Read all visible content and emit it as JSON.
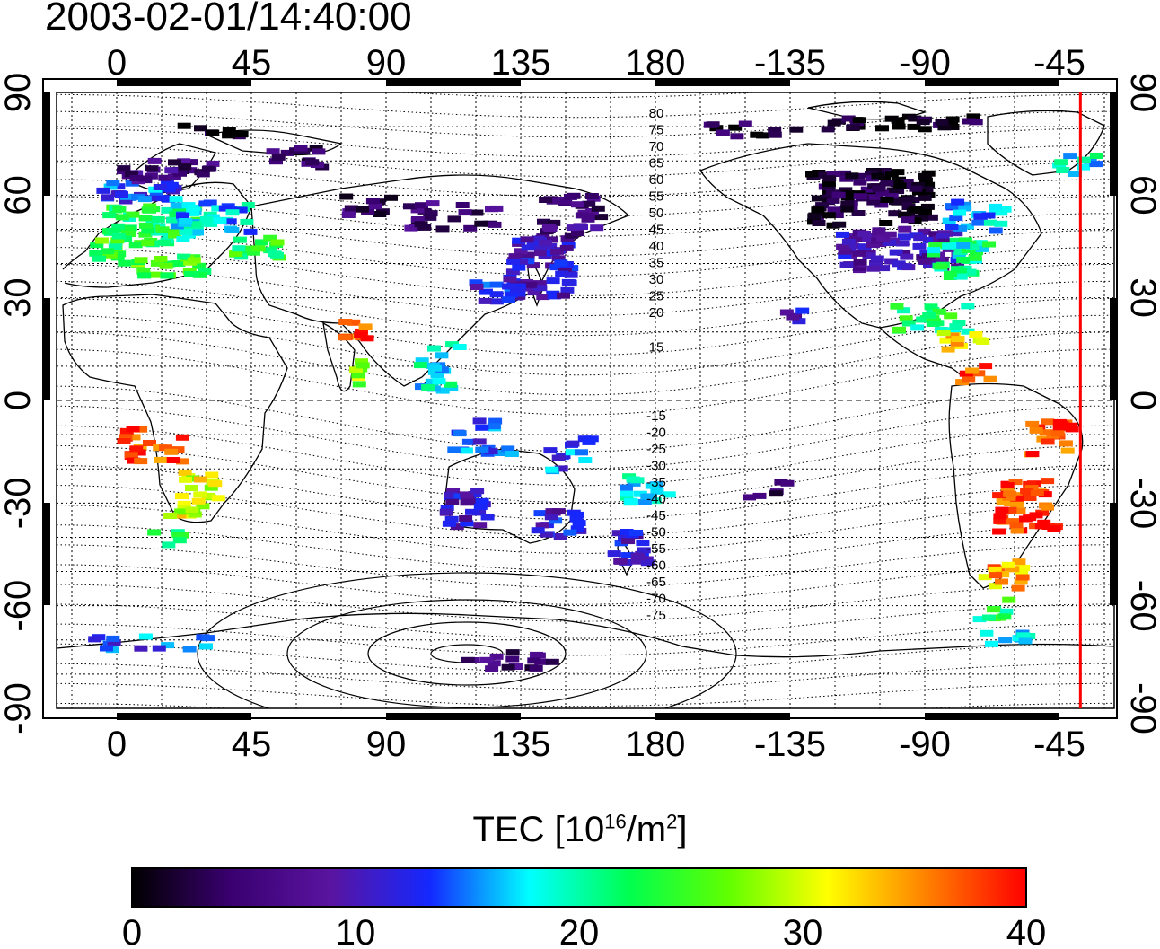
{
  "title": "2003-02-01/14:40:00",
  "map": {
    "lon_ticks_top": [
      "0",
      "45",
      "90",
      "135",
      "180",
      "-135",
      "-90",
      "-45"
    ],
    "lon_ticks_bottom": [
      "0",
      "45",
      "90",
      "135",
      "180",
      "-135",
      "-90",
      "-45"
    ],
    "lat_ticks_left": [
      "90",
      "60",
      "30",
      "0",
      "-30",
      "-60",
      "-90"
    ],
    "lat_ticks_right": [
      "90",
      "60",
      "30",
      "0",
      "-30",
      "-60",
      "-90"
    ],
    "contour_labels_north": [
      "80",
      "75",
      "70",
      "65",
      "60",
      "55",
      "50",
      "45",
      "40",
      "35",
      "30",
      "25",
      "20",
      "15"
    ],
    "contour_labels_south": [
      "-15",
      "-20",
      "-25",
      "-30",
      "-35",
      "-40",
      "-45",
      "-50",
      "-55",
      "-60",
      "-65",
      "-70",
      "-75"
    ],
    "marker_line_color": "#ff0000",
    "marker_line_lon": -38
  },
  "colorbar": {
    "title_main": "TEC  [10",
    "title_sup1": "16",
    "title_mid": "/m",
    "title_sup2": "2",
    "title_end": "]",
    "tick_labels": [
      "0",
      "10",
      "20",
      "30",
      "40"
    ],
    "range": [
      0,
      40
    ],
    "colors": [
      "#000000",
      "#3a0070",
      "#5a14a0",
      "#1428ff",
      "#00ffff",
      "#00ff50",
      "#60ff00",
      "#ffff00",
      "#ff8000",
      "#ff0000"
    ]
  }
}
